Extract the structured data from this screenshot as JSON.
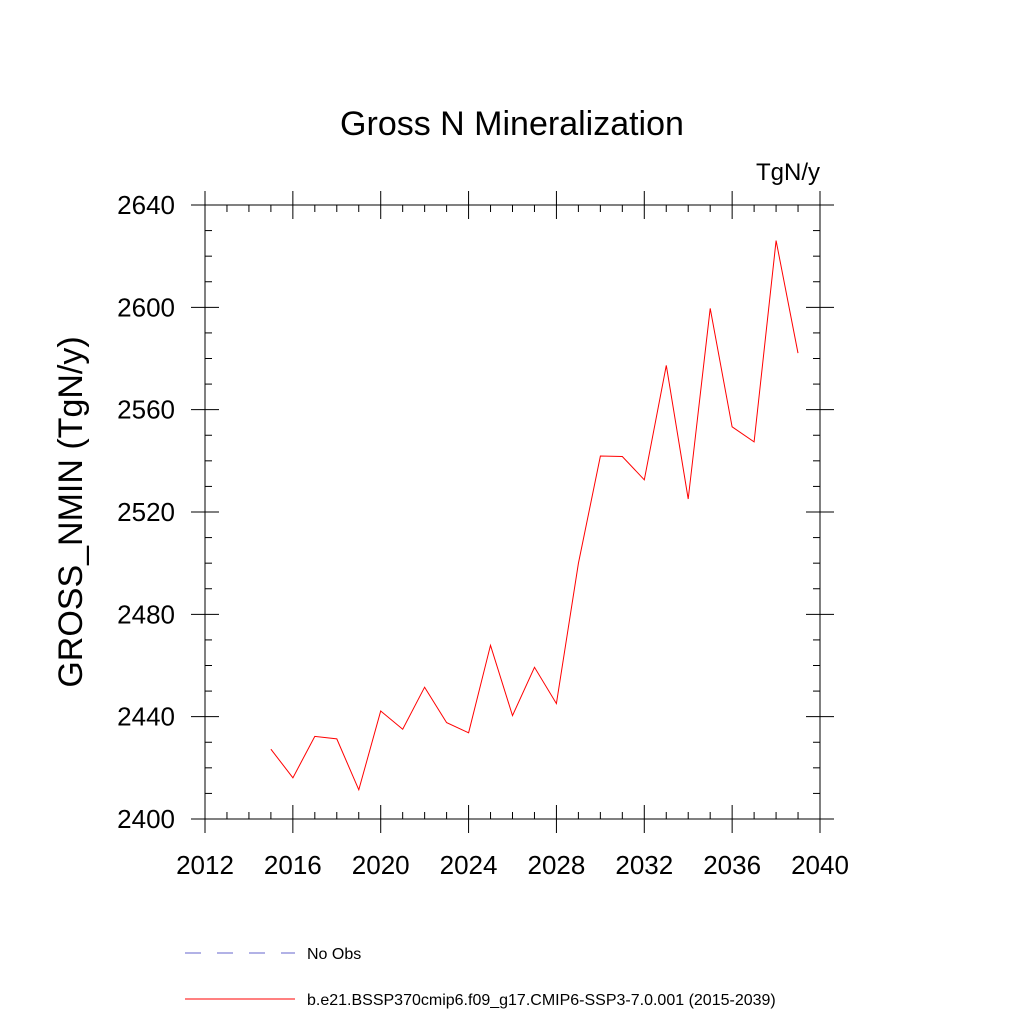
{
  "chart_data": {
    "type": "line",
    "title": "Gross N Mineralization",
    "units_label": "TgN/y",
    "ylabel": "GROSS_NMIN  (TgN/y)",
    "xlabel": "",
    "xlim": [
      2012,
      2040
    ],
    "ylim": [
      2400,
      2640
    ],
    "x_ticks": [
      2012,
      2016,
      2020,
      2024,
      2028,
      2032,
      2036,
      2040
    ],
    "y_ticks": [
      2400,
      2440,
      2480,
      2520,
      2560,
      2600,
      2640
    ],
    "x_minor_step": 1,
    "y_minor_step": 10,
    "grid": false,
    "legend_placement": "bottom",
    "series": [
      {
        "name": "b.e21.BSSP370cmip6.f09_g17.CMIP6-SSP3-7.0.001 (2015-2039)",
        "color": "#ff0000",
        "style": "solid",
        "x": [
          2015,
          2016,
          2017,
          2018,
          2019,
          2020,
          2021,
          2022,
          2023,
          2024,
          2025,
          2026,
          2027,
          2028,
          2029,
          2030,
          2031,
          2032,
          2033,
          2034,
          2035,
          2036,
          2037,
          2038,
          2039
        ],
        "y": [
          2427.3,
          2416.1,
          2432.3,
          2431.3,
          2411.4,
          2442.2,
          2435.1,
          2451.5,
          2437.7,
          2433.7,
          2467.9,
          2440.4,
          2459.3,
          2445.1,
          2499.9,
          2541.9,
          2541.7,
          2532.6,
          2577.3,
          2525.1,
          2599.6,
          2553.3,
          2547.4,
          2626.1,
          2582.1
        ]
      }
    ],
    "legend": [
      {
        "label": "No Obs",
        "color": "#6666cc",
        "style": "dashed"
      },
      {
        "label": "b.e21.BSSP370cmip6.f09_g17.CMIP6-SSP3-7.0.001 (2015-2039)",
        "color": "#ff0000",
        "style": "solid"
      }
    ]
  }
}
